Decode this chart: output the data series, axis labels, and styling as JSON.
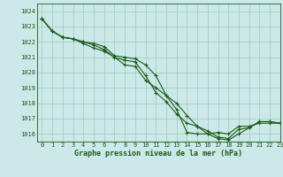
{
  "title": "Graphe pression niveau de la mer (hPa)",
  "bg_color": "#cce8e8",
  "grid_color": "#99ccbb",
  "line_color": "#1a5c1a",
  "xlim": [
    -0.5,
    23
  ],
  "ylim": [
    1015.5,
    1024.5
  ],
  "yticks": [
    1016,
    1017,
    1018,
    1019,
    1020,
    1021,
    1022,
    1023,
    1024
  ],
  "xticks": [
    0,
    1,
    2,
    3,
    4,
    5,
    6,
    7,
    8,
    9,
    10,
    11,
    12,
    13,
    14,
    15,
    16,
    17,
    18,
    19,
    20,
    21,
    22,
    23
  ],
  "series": [
    [
      1023.5,
      1022.7,
      1022.3,
      1022.2,
      1022.0,
      1021.9,
      1021.7,
      1021.1,
      1021.0,
      1020.9,
      1020.5,
      1019.8,
      1018.5,
      1017.6,
      1016.1,
      1016.0,
      1016.0,
      1016.1,
      1016.0,
      1016.5,
      1016.5,
      1016.7,
      1016.7,
      1016.7
    ],
    [
      1023.5,
      1022.7,
      1022.3,
      1022.2,
      1022.0,
      1021.8,
      1021.5,
      1021.0,
      1020.8,
      1020.7,
      1019.8,
      1018.7,
      1018.1,
      1017.3,
      1016.7,
      1016.5,
      1016.2,
      1015.8,
      1015.7,
      1016.3,
      1016.4,
      1016.8,
      1016.8,
      1016.7
    ],
    [
      1023.5,
      1022.7,
      1022.3,
      1022.2,
      1021.9,
      1021.6,
      1021.4,
      1021.0,
      1020.5,
      1020.4,
      1019.5,
      1019.0,
      1018.5,
      1018.0,
      1017.2,
      1016.5,
      1016.0,
      1015.7,
      1015.6,
      1016.0,
      1016.4,
      1016.8,
      1016.8,
      1016.7
    ]
  ]
}
